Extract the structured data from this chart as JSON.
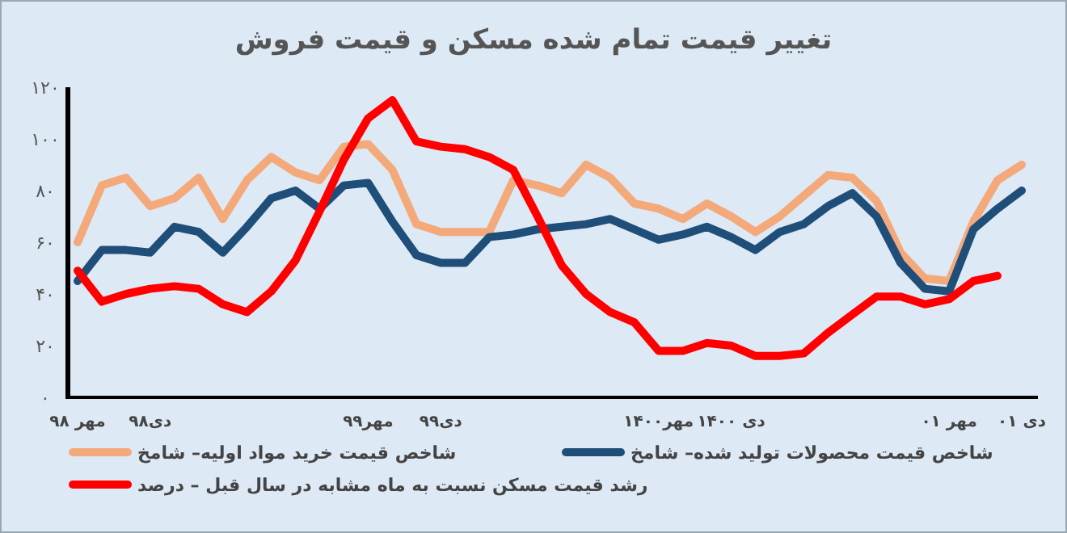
{
  "chart_data": {
    "type": "line",
    "title": "تغییر قیمت تمام شده مسکن و قیمت فروش",
    "categories": [
      "مهر ۹۸",
      null,
      null,
      "دی۹۸",
      null,
      null,
      null,
      null,
      null,
      null,
      null,
      null,
      "مهر۹۹",
      null,
      null,
      "دی۹۹",
      null,
      null,
      null,
      null,
      null,
      null,
      null,
      null,
      "مهر۱۴۰۰",
      null,
      null,
      "دی ۱۴۰۰",
      null,
      null,
      null,
      null,
      null,
      null,
      null,
      null,
      "مهر ۰۱",
      null,
      null,
      "دی ۰۱"
    ],
    "ylim": [
      0,
      120
    ],
    "yticks": [
      {
        "value": 0,
        "label": "۰"
      },
      {
        "value": 20,
        "label": "۲۰"
      },
      {
        "value": 40,
        "label": "۴۰"
      },
      {
        "value": 60,
        "label": "۶۰"
      },
      {
        "value": 80,
        "label": "۸۰"
      },
      {
        "value": 100,
        "label": "۱۰۰"
      },
      {
        "value": 120,
        "label": "۱۲۰"
      }
    ],
    "legend": "bottom",
    "series": [
      {
        "name": "شاخص قیمت خرید مواد اولیه– شامخ",
        "color": "#f4a97a",
        "values": [
          60,
          82,
          85,
          74,
          77,
          85,
          69,
          84,
          93,
          87,
          84,
          97,
          98,
          88,
          67,
          64,
          64,
          64,
          84,
          82,
          79,
          90,
          85,
          75,
          73,
          69,
          75,
          70,
          64,
          70,
          78,
          86,
          85,
          76,
          56,
          46,
          45,
          68,
          84,
          90
        ]
      },
      {
        "name": "شاخص قیمت محصولات تولید شده– شامخ",
        "color": "#1f4e79",
        "values": [
          45,
          57,
          57,
          56,
          66,
          64,
          56,
          66,
          77,
          80,
          73,
          82,
          83,
          68,
          55,
          52,
          52,
          62,
          63,
          65,
          66,
          67,
          69,
          65,
          61,
          63,
          66,
          62,
          57,
          64,
          67,
          74,
          79,
          70,
          52,
          42,
          41,
          65,
          73,
          80
        ]
      },
      {
        "name": "رشد قیمت مسکن نسبت به ماه مشابه در سال قبل – درصد",
        "color": "#ff0000",
        "values": [
          49,
          37,
          40,
          42,
          43,
          42,
          36,
          33,
          41,
          53,
          72,
          92,
          108,
          115,
          99,
          97,
          96,
          93,
          88,
          70,
          51,
          40,
          33,
          29,
          18,
          18,
          21,
          20,
          16,
          16,
          17,
          25,
          32,
          39,
          39,
          36,
          38,
          45,
          47,
          null
        ]
      }
    ]
  }
}
